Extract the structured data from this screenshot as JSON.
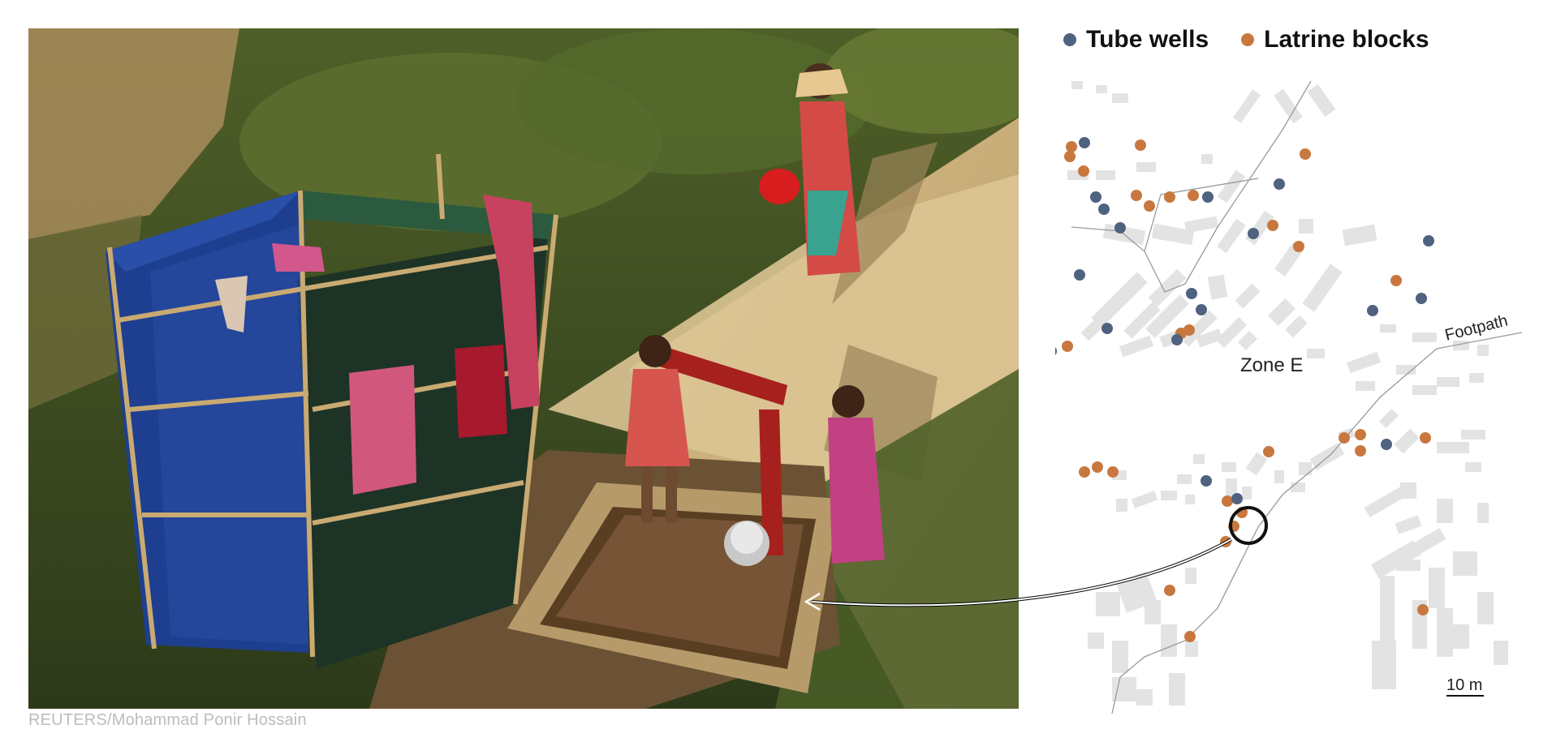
{
  "photo": {
    "credit": "REUTERS/Mohammad Ponir Hossain"
  },
  "legend": {
    "items": [
      {
        "label": "Tube wells",
        "color": "#4f6280"
      },
      {
        "label": "Latrine blocks",
        "color": "#c8783f"
      }
    ]
  },
  "map": {
    "zone_label": "Zone E",
    "path_label": "Footpath",
    "scale_label": "10 m",
    "colors": {
      "tube_well": "#4f6280",
      "latrine": "#c8783f",
      "building": "#e3e3e3",
      "path": "#9a9a9a"
    }
  }
}
